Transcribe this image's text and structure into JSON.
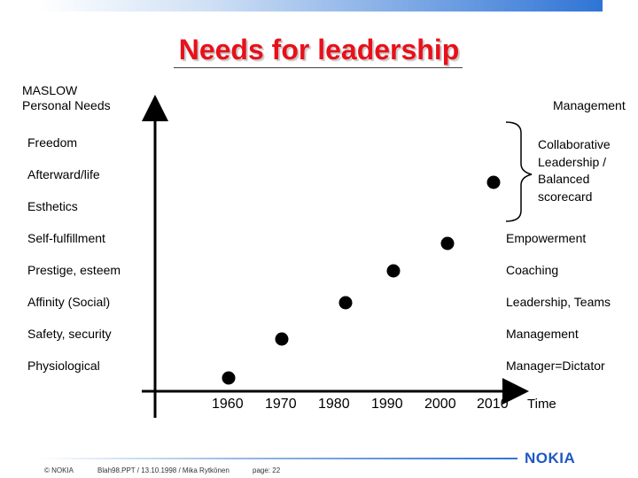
{
  "slide": {
    "title": "Needs for leadership",
    "maslow_header_line1": "MASLOW",
    "maslow_header_line2": "Personal Needs",
    "management_header": "Management",
    "needs": [
      "Freedom",
      "Afterward/life",
      "Esthetics",
      "Self-fulfillment",
      "Prestige, esteem",
      "Affinity (Social)",
      "Safety, security",
      "Physiological"
    ],
    "management_styles": [
      "Collaborative",
      "Leadership /",
      "Balanced",
      "scorecard",
      "Empowerment",
      "Coaching",
      "Leadership, Teams",
      "Management",
      "Manager=Dictator"
    ],
    "years": [
      "1960",
      "1970",
      "1980",
      "1990",
      "2000",
      "2010"
    ],
    "x_axis_label": "Time"
  },
  "diagram_points": [
    {
      "year": 1960,
      "level": "Physiological"
    },
    {
      "year": 1970,
      "level": "Safety, security"
    },
    {
      "year": 1980,
      "level": "Affinity (Social)"
    },
    {
      "year": 1990,
      "level": "Prestige, esteem"
    },
    {
      "year": 2000,
      "level": "Self-fulfillment"
    },
    {
      "year": 2010,
      "level": "Afterward/life"
    }
  ],
  "footer": {
    "copyright": "© NOKIA",
    "file_info": "Blah98.PPT / 13.10.1998 / Mika Rytkönen",
    "page": "page: 22",
    "logo": "NOKIA"
  },
  "colors": {
    "title": "#e8101a",
    "brand_blue": "#1f57c3"
  }
}
